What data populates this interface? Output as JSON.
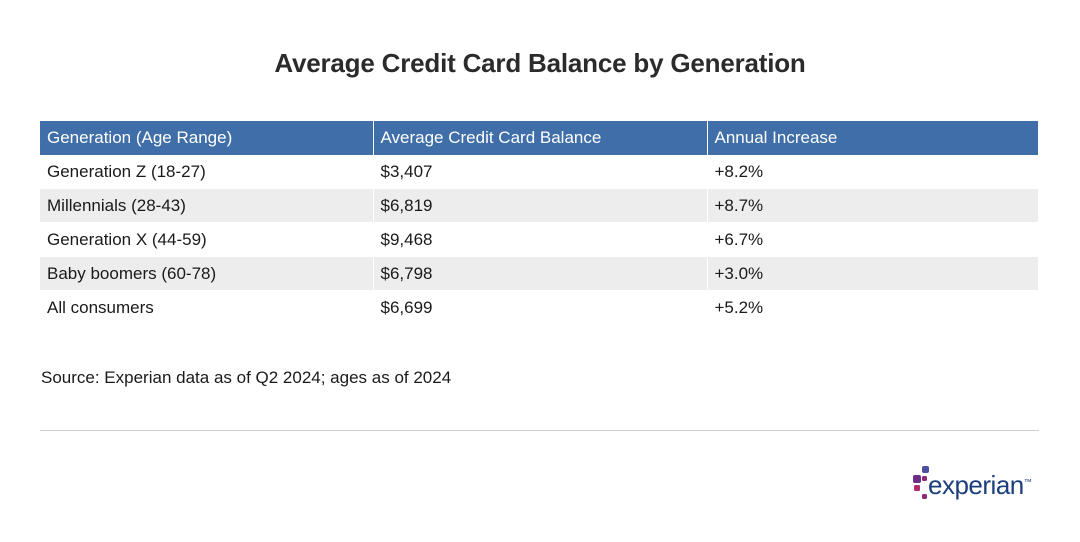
{
  "title": "Average Credit Card Balance by Generation",
  "chart_data": {
    "type": "table",
    "title": "Average Credit Card Balance by Generation",
    "columns": [
      "Generation (Age Range)",
      "Average Credit Card Balance",
      "Annual Increase"
    ],
    "rows": [
      [
        "Generation Z (18-27)",
        "$3,407",
        "+8.2%"
      ],
      [
        "Millennials (28-43)",
        "$6,819",
        "+8.7%"
      ],
      [
        "Generation X (44-59)",
        "$9,468",
        "+6.7%"
      ],
      [
        "Baby boomers (60-78)",
        "$6,798",
        "+3.0%"
      ],
      [
        "All consumers",
        "$6,699",
        "+5.2%"
      ]
    ]
  },
  "source": "Source: Experian data as of Q2 2024; ages as of 2024",
  "logo": {
    "text": "experian",
    "trademark": "™"
  },
  "colors": {
    "header_bg": "#3f6ea8",
    "header_text": "#ffffff",
    "stripe": "#ededed",
    "logo_blue": "#1d3e7d",
    "logo_dots": [
      "#4c4f9e",
      "#8c2a78",
      "#b02a6e",
      "#6b2e86"
    ]
  }
}
